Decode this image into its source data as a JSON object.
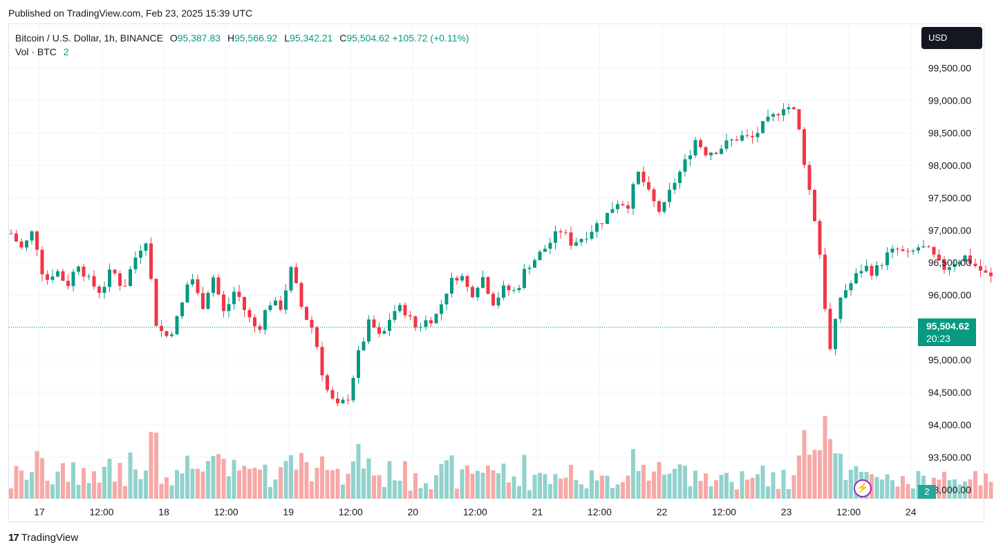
{
  "header": {
    "published": "Published on TradingView.com, Feb 23, 2025 15:39 UTC"
  },
  "legend": {
    "symbol": "Bitcoin / U.S. Dollar, 1h, BINANCE",
    "o_label": "O",
    "o_value": "95,387.83",
    "h_label": "H",
    "h_value": "95,566.92",
    "l_label": "L",
    "l_value": "95,342.21",
    "c_label": "C",
    "c_value": "95,504.62",
    "change": "+105.72 (+0.11%)",
    "vol_label": "Vol · BTC",
    "vol_value": "2"
  },
  "currency_button": "USD",
  "last_price": {
    "value": "95,504.62",
    "countdown": "20:23"
  },
  "volume_badge": "2",
  "footer": {
    "brand": "TradingView",
    "logo": "17"
  },
  "colors": {
    "up": "#089981",
    "down": "#f23645",
    "vol_up": "#92d2cc",
    "vol_down": "#f7a9a7",
    "grid": "#f0f3fa"
  },
  "chart_data": {
    "type": "candlestick",
    "interval": "1h",
    "y_ticks": [
      99500,
      99000,
      98500,
      98000,
      97500,
      97000,
      96500,
      96000,
      95500,
      95000,
      94500,
      94000,
      93500,
      93000
    ],
    "y_tick_labels": [
      "99,500.00",
      "99,000.00",
      "98,500.00",
      "98,000.00",
      "97,500.00",
      "97,000.00",
      "96,500.00",
      "96,000.00",
      "",
      "95,000.00",
      "94,500.00",
      "94,000.00",
      "93,500.00",
      "93,000.00"
    ],
    "x_tick_labels": [
      "17",
      "12:00",
      "18",
      "12:00",
      "19",
      "12:00",
      "20",
      "12:00",
      "21",
      "12:00",
      "22",
      "12:00",
      "23",
      "12:00",
      "24"
    ],
    "close_path": [
      96950,
      96700,
      97000,
      96200,
      96400,
      96150,
      96500,
      96200,
      96050,
      96400,
      96100,
      96550,
      96900,
      95500,
      95350,
      95700,
      96350,
      95800,
      96300,
      95700,
      96100,
      95700,
      95450,
      95900,
      95800,
      96400,
      95750,
      95450,
      94600,
      94250,
      94400,
      95100,
      95600,
      95300,
      95750,
      95800,
      95500,
      95600,
      95700,
      96150,
      96350,
      96000,
      96300,
      95900,
      96100,
      96050,
      96450,
      96600,
      96800,
      97000,
      96800,
      96900,
      97050,
      97200,
      97450,
      97400,
      97900,
      97500,
      97250,
      97700,
      98000,
      98400,
      98200,
      98250,
      98350,
      98450,
      98400,
      98600,
      98750,
      98950,
      98800,
      97800,
      96850,
      95100,
      96000,
      96200,
      96450,
      96350,
      96600,
      96700,
      96600,
      96750,
      96650,
      96400,
      96500,
      96600,
      96450,
      96300,
      96200,
      96000,
      95600,
      95300,
      95500
    ],
    "current_price": 95504.62,
    "last_candle": {
      "open": 95387.83,
      "high": 95566.92,
      "low": 95342.21,
      "close": 95504.62
    },
    "current_volume": 2
  }
}
